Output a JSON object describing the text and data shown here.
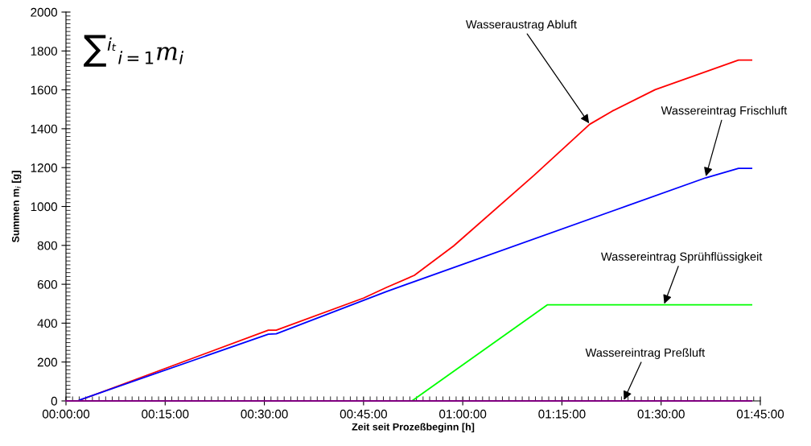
{
  "chart_data": {
    "type": "line",
    "xlabel": "Zeit seit Prozeßbeginn [h]",
    "ylabel": "Summen m$_{i}$ [g]",
    "series": [
      {
        "color": "#ff0000",
        "x": [
          0,
          0.03,
          0.51,
          0.53,
          0.75,
          0.808,
          0.878,
          0.977,
          1.18,
          1.32,
          1.377,
          1.485,
          1.695,
          1.728
        ],
        "values": [
          0,
          0,
          364,
          364,
          529,
          584,
          646,
          797,
          1161,
          1423,
          1491,
          1601,
          1753,
          1753
        ]
      },
      {
        "color": "#0000ff",
        "x": [
          0,
          0.03,
          0.037,
          0.51,
          0.53,
          0.808,
          1.613,
          1.695,
          1.728
        ],
        "values": [
          0,
          0,
          7,
          343,
          345,
          563,
          1148,
          1196,
          1196
        ]
      },
      {
        "color": "#00ff00",
        "x": [
          0,
          0.872,
          1.213,
          1.728
        ],
        "values": [
          0,
          0,
          494,
          494
        ]
      },
      {
        "color": "#800080",
        "x": [
          0,
          1.728
        ],
        "values": [
          0,
          0
        ]
      }
    ],
    "xlim": [
      0,
      1.75
    ],
    "xticks": [
      {
        "value": 0,
        "label": "00:00:00"
      },
      {
        "value": 0.25,
        "label": "00:15:00"
      },
      {
        "value": 0.5,
        "label": "00:30:00"
      },
      {
        "value": 0.75,
        "label": "00:45:00"
      },
      {
        "value": 1,
        "label": "01:00:00"
      },
      {
        "value": 1.25,
        "label": "01:15:00"
      },
      {
        "value": 1.5,
        "label": "01:30:00"
      },
      {
        "value": 1.75,
        "label": "01:45:00"
      }
    ],
    "ylim": [
      0,
      2000
    ],
    "yticks": [
      0,
      200,
      400,
      600,
      800,
      1000,
      1200,
      1400,
      1600,
      1800,
      2000
    ],
    "grid": false,
    "legend": false,
    "marker": "none",
    "line_style": "solid",
    "annotations": [
      "∑$^{iₜ}$$_{i=1}$m$_{i}$",
      {
        "text": "Wasseraustrag Abluft",
        "x": 1.32,
        "y": 1423
      },
      {
        "text": "Wassereintrag Frischluft",
        "x": 1.612,
        "y": 1150
      },
      {
        "text": "Wassereintrag Sprühflüssigkeit",
        "x": 1.507,
        "y": 494
      },
      {
        "text": "Wassereintrag Preßluft",
        "x": 1.405,
        "y": 0
      }
    ]
  }
}
